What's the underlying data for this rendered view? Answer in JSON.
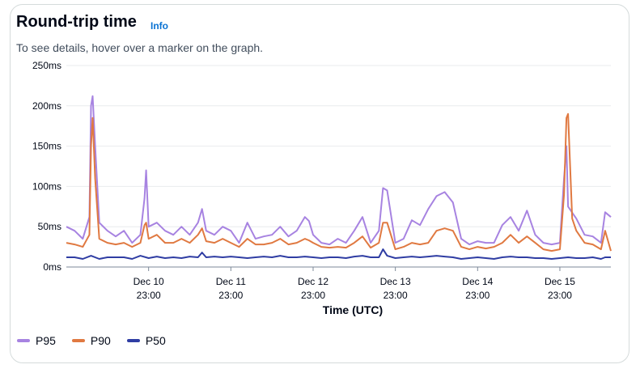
{
  "header": {
    "title": "Round-trip time",
    "info_link": "Info",
    "description": "To see details, hover over a marker on the graph."
  },
  "chart_data": {
    "type": "line",
    "title": "Round-trip time",
    "xlabel": "Time (UTC)",
    "ylabel": "",
    "ylim": [
      0,
      250
    ],
    "xlim": [
      0,
      6.62
    ],
    "y_ticks": [
      0,
      50,
      100,
      150,
      200,
      250
    ],
    "y_tick_labels": [
      "0ms",
      "50ms",
      "100ms",
      "150ms",
      "200ms",
      "250ms"
    ],
    "x_ticks": [
      1,
      2,
      3,
      4,
      5,
      6
    ],
    "x_tick_labels": [
      [
        "Dec 10",
        "23:00"
      ],
      [
        "Dec 11",
        "23:00"
      ],
      [
        "Dec 12",
        "23:00"
      ],
      [
        "Dec 13",
        "23:00"
      ],
      [
        "Dec 14",
        "23:00"
      ],
      [
        "Dec 15",
        "23:00"
      ]
    ],
    "x_unit": "days since Dec 9 23:00",
    "series": [
      {
        "name": "P95",
        "color": "#a783e1",
        "points": [
          [
            0,
            50
          ],
          [
            0.1,
            45
          ],
          [
            0.2,
            35
          ],
          [
            0.28,
            62
          ],
          [
            0.3,
            200
          ],
          [
            0.32,
            212
          ],
          [
            0.35,
            150
          ],
          [
            0.4,
            55
          ],
          [
            0.5,
            45
          ],
          [
            0.6,
            38
          ],
          [
            0.7,
            45
          ],
          [
            0.8,
            30
          ],
          [
            0.9,
            40
          ],
          [
            0.95,
            85
          ],
          [
            0.97,
            120
          ],
          [
            1.0,
            50
          ],
          [
            1.1,
            55
          ],
          [
            1.2,
            45
          ],
          [
            1.3,
            40
          ],
          [
            1.4,
            50
          ],
          [
            1.5,
            40
          ],
          [
            1.6,
            55
          ],
          [
            1.65,
            72
          ],
          [
            1.7,
            45
          ],
          [
            1.8,
            40
          ],
          [
            1.9,
            50
          ],
          [
            2.0,
            45
          ],
          [
            2.1,
            30
          ],
          [
            2.2,
            55
          ],
          [
            2.3,
            35
          ],
          [
            2.4,
            38
          ],
          [
            2.5,
            40
          ],
          [
            2.6,
            50
          ],
          [
            2.7,
            38
          ],
          [
            2.8,
            45
          ],
          [
            2.9,
            62
          ],
          [
            2.95,
            57
          ],
          [
            3.0,
            40
          ],
          [
            3.1,
            30
          ],
          [
            3.2,
            28
          ],
          [
            3.3,
            35
          ],
          [
            3.4,
            30
          ],
          [
            3.5,
            45
          ],
          [
            3.6,
            62
          ],
          [
            3.7,
            30
          ],
          [
            3.8,
            45
          ],
          [
            3.85,
            98
          ],
          [
            3.9,
            95
          ],
          [
            4.0,
            30
          ],
          [
            4.1,
            35
          ],
          [
            4.2,
            58
          ],
          [
            4.3,
            52
          ],
          [
            4.4,
            72
          ],
          [
            4.5,
            88
          ],
          [
            4.6,
            93
          ],
          [
            4.7,
            80
          ],
          [
            4.8,
            35
          ],
          [
            4.9,
            28
          ],
          [
            5.0,
            32
          ],
          [
            5.1,
            30
          ],
          [
            5.2,
            30
          ],
          [
            5.3,
            52
          ],
          [
            5.4,
            62
          ],
          [
            5.5,
            45
          ],
          [
            5.6,
            70
          ],
          [
            5.7,
            40
          ],
          [
            5.8,
            30
          ],
          [
            5.9,
            28
          ],
          [
            6.0,
            30
          ],
          [
            6.05,
            110
          ],
          [
            6.08,
            150
          ],
          [
            6.1,
            75
          ],
          [
            6.2,
            60
          ],
          [
            6.3,
            40
          ],
          [
            6.4,
            38
          ],
          [
            6.5,
            30
          ],
          [
            6.55,
            68
          ],
          [
            6.62,
            62
          ]
        ]
      },
      {
        "name": "P90",
        "color": "#e07941",
        "points": [
          [
            0,
            30
          ],
          [
            0.1,
            28
          ],
          [
            0.2,
            25
          ],
          [
            0.28,
            40
          ],
          [
            0.3,
            150
          ],
          [
            0.32,
            185
          ],
          [
            0.35,
            110
          ],
          [
            0.4,
            35
          ],
          [
            0.5,
            30
          ],
          [
            0.6,
            28
          ],
          [
            0.7,
            30
          ],
          [
            0.8,
            25
          ],
          [
            0.9,
            30
          ],
          [
            0.95,
            52
          ],
          [
            0.97,
            55
          ],
          [
            1.0,
            35
          ],
          [
            1.1,
            40
          ],
          [
            1.2,
            30
          ],
          [
            1.3,
            30
          ],
          [
            1.4,
            35
          ],
          [
            1.5,
            30
          ],
          [
            1.6,
            40
          ],
          [
            1.65,
            48
          ],
          [
            1.7,
            32
          ],
          [
            1.8,
            30
          ],
          [
            1.9,
            35
          ],
          [
            2.0,
            30
          ],
          [
            2.1,
            25
          ],
          [
            2.2,
            35
          ],
          [
            2.3,
            28
          ],
          [
            2.4,
            28
          ],
          [
            2.5,
            30
          ],
          [
            2.6,
            35
          ],
          [
            2.7,
            28
          ],
          [
            2.8,
            30
          ],
          [
            2.9,
            35
          ],
          [
            2.95,
            33
          ],
          [
            3.0,
            30
          ],
          [
            3.1,
            25
          ],
          [
            3.2,
            24
          ],
          [
            3.3,
            25
          ],
          [
            3.4,
            24
          ],
          [
            3.5,
            30
          ],
          [
            3.6,
            38
          ],
          [
            3.7,
            24
          ],
          [
            3.8,
            30
          ],
          [
            3.85,
            55
          ],
          [
            3.9,
            55
          ],
          [
            4.0,
            22
          ],
          [
            4.1,
            25
          ],
          [
            4.2,
            30
          ],
          [
            4.3,
            28
          ],
          [
            4.4,
            30
          ],
          [
            4.5,
            45
          ],
          [
            4.6,
            48
          ],
          [
            4.7,
            45
          ],
          [
            4.8,
            25
          ],
          [
            4.9,
            22
          ],
          [
            5.0,
            25
          ],
          [
            5.1,
            23
          ],
          [
            5.2,
            25
          ],
          [
            5.3,
            30
          ],
          [
            5.4,
            40
          ],
          [
            5.5,
            30
          ],
          [
            5.6,
            38
          ],
          [
            5.7,
            30
          ],
          [
            5.8,
            22
          ],
          [
            5.9,
            20
          ],
          [
            6.0,
            22
          ],
          [
            6.05,
            90
          ],
          [
            6.08,
            185
          ],
          [
            6.1,
            190
          ],
          [
            6.15,
            60
          ],
          [
            6.2,
            45
          ],
          [
            6.3,
            30
          ],
          [
            6.4,
            28
          ],
          [
            6.5,
            22
          ],
          [
            6.55,
            45
          ],
          [
            6.62,
            20
          ]
        ]
      },
      {
        "name": "P50",
        "color": "#2f3da3",
        "points": [
          [
            0,
            12
          ],
          [
            0.1,
            12
          ],
          [
            0.2,
            10
          ],
          [
            0.3,
            14
          ],
          [
            0.4,
            10
          ],
          [
            0.5,
            12
          ],
          [
            0.6,
            12
          ],
          [
            0.7,
            12
          ],
          [
            0.8,
            10
          ],
          [
            0.9,
            14
          ],
          [
            1.0,
            11
          ],
          [
            1.1,
            13
          ],
          [
            1.2,
            11
          ],
          [
            1.3,
            12
          ],
          [
            1.4,
            11
          ],
          [
            1.5,
            13
          ],
          [
            1.6,
            12
          ],
          [
            1.65,
            18
          ],
          [
            1.7,
            12
          ],
          [
            1.8,
            13
          ],
          [
            1.9,
            12
          ],
          [
            2.0,
            13
          ],
          [
            2.1,
            12
          ],
          [
            2.2,
            11
          ],
          [
            2.3,
            12
          ],
          [
            2.4,
            13
          ],
          [
            2.5,
            12
          ],
          [
            2.6,
            14
          ],
          [
            2.7,
            12
          ],
          [
            2.8,
            12
          ],
          [
            2.9,
            13
          ],
          [
            3.0,
            12
          ],
          [
            3.1,
            11
          ],
          [
            3.2,
            12
          ],
          [
            3.3,
            12
          ],
          [
            3.4,
            11
          ],
          [
            3.5,
            13
          ],
          [
            3.6,
            14
          ],
          [
            3.7,
            12
          ],
          [
            3.8,
            12
          ],
          [
            3.85,
            22
          ],
          [
            3.9,
            14
          ],
          [
            4.0,
            11
          ],
          [
            4.1,
            12
          ],
          [
            4.2,
            13
          ],
          [
            4.3,
            12
          ],
          [
            4.4,
            13
          ],
          [
            4.5,
            14
          ],
          [
            4.6,
            13
          ],
          [
            4.7,
            12
          ],
          [
            4.8,
            10
          ],
          [
            4.9,
            11
          ],
          [
            5.0,
            12
          ],
          [
            5.1,
            11
          ],
          [
            5.2,
            10
          ],
          [
            5.3,
            12
          ],
          [
            5.4,
            13
          ],
          [
            5.5,
            12
          ],
          [
            5.6,
            12
          ],
          [
            5.7,
            11
          ],
          [
            5.8,
            11
          ],
          [
            5.9,
            10
          ],
          [
            6.0,
            11
          ],
          [
            6.1,
            12
          ],
          [
            6.2,
            11
          ],
          [
            6.3,
            11
          ],
          [
            6.4,
            12
          ],
          [
            6.5,
            10
          ],
          [
            6.55,
            12
          ],
          [
            6.62,
            12
          ]
        ]
      }
    ]
  }
}
